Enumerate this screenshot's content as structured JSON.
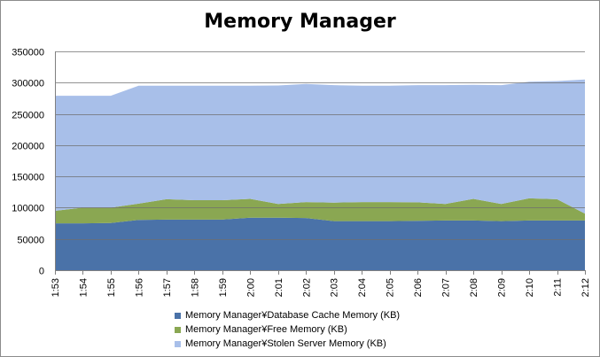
{
  "chart_data": {
    "type": "area",
    "stacked": true,
    "title": "Memory Manager",
    "categories": [
      "1:53",
      "1:54",
      "1:55",
      "1:56",
      "1:57",
      "1:58",
      "1:59",
      "2:00",
      "2:01",
      "2:02",
      "2:03",
      "2:04",
      "2:05",
      "2:06",
      "2:07",
      "2:08",
      "2:09",
      "2:10",
      "2:11",
      "2:12"
    ],
    "series": [
      {
        "name": "Memory Manager¥Database  Cache Memory (KB)",
        "color": "#4a72a8",
        "values": [
          75000,
          75000,
          75500,
          80500,
          81000,
          81000,
          81000,
          84000,
          84000,
          83500,
          78500,
          78500,
          78500,
          79000,
          79500,
          79500,
          78500,
          79500,
          79500,
          79500
        ]
      },
      {
        "name": "Memory Manager¥Free Memory (KB)",
        "color": "#8aa752",
        "values": [
          20000,
          25000,
          24500,
          26000,
          32500,
          31000,
          31000,
          30000,
          22000,
          25500,
          29500,
          30500,
          30500,
          29500,
          26500,
          34500,
          27500,
          35500,
          34000,
          11000
        ]
      },
      {
        "name": "Memory Manager¥Stolen Server Memory (KB)",
        "color": "#a8bfe9",
        "values": [
          184000,
          179000,
          179000,
          188500,
          181500,
          183000,
          183000,
          181000,
          189500,
          189000,
          188000,
          186000,
          186000,
          187500,
          190000,
          182500,
          190000,
          186500,
          189000,
          214500
        ]
      }
    ],
    "ylim": [
      0,
      350000
    ],
    "yticks": [
      "0",
      "50000",
      "100000",
      "150000",
      "200000",
      "250000",
      "300000",
      "350000"
    ],
    "grid": true,
    "legend_position": "bottom"
  }
}
